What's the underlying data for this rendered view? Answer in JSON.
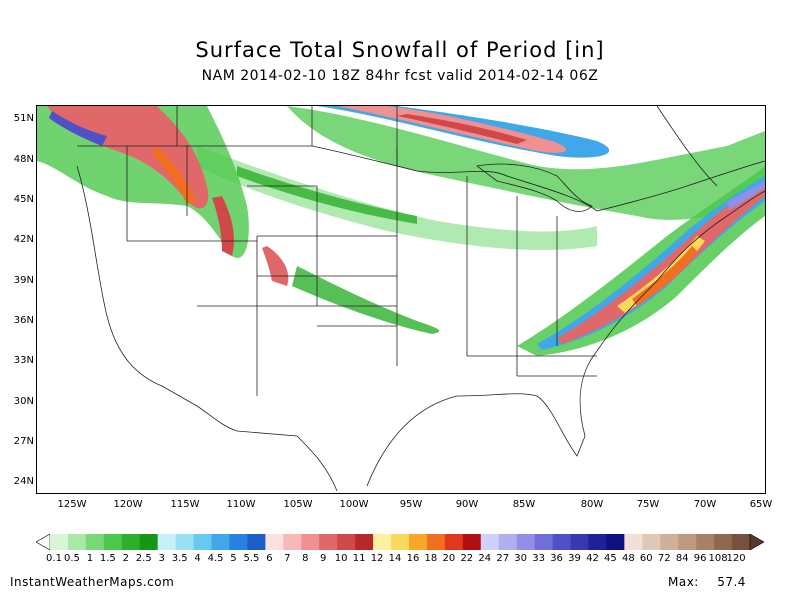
{
  "title": "Surface Total Snowfall of Period [in]",
  "subtitle": "NAM 2014-02-10 18Z 84hr fcst valid 2014-02-14 06Z",
  "lat_labels": [
    "51N",
    "48N",
    "45N",
    "42N",
    "39N",
    "36N",
    "33N",
    "30N",
    "27N",
    "24N"
  ],
  "lon_labels": [
    "125W",
    "120W",
    "115W",
    "110W",
    "105W",
    "100W",
    "95W",
    "90W",
    "85W",
    "80W",
    "75W",
    "70W",
    "65W"
  ],
  "legend": {
    "labels": [
      "0.1",
      "0.5",
      "1",
      "1.5",
      "2",
      "2.5",
      "3",
      "3.5",
      "4",
      "4.5",
      "5",
      "5.5",
      "6",
      "7",
      "8",
      "9",
      "10",
      "11",
      "12",
      "14",
      "16",
      "18",
      "20",
      "22",
      "24",
      "27",
      "30",
      "33",
      "36",
      "39",
      "42",
      "45",
      "48",
      "60",
      "72",
      "84",
      "96",
      "108",
      "120"
    ],
    "colors": [
      "#d8f5d8",
      "#a8e8a8",
      "#78d878",
      "#4cc84c",
      "#2cb02c",
      "#169616",
      "#c8f0f8",
      "#98e0f4",
      "#68c8ee",
      "#40a8e8",
      "#2880e0",
      "#1860c8",
      "#ffe0e0",
      "#f8b8b8",
      "#f09090",
      "#e06868",
      "#d04848",
      "#b82828",
      "#fff0a0",
      "#fcd858",
      "#f8a828",
      "#f07020",
      "#e03818",
      "#b01010",
      "#d0d0f8",
      "#b0b0f0",
      "#9090e8",
      "#7070d8",
      "#5050c8",
      "#3838b0",
      "#202098",
      "#101080",
      "#f0e0d8",
      "#e0c8b8",
      "#d0b098",
      "#c09880",
      "#a88068",
      "#906850",
      "#785040"
    ]
  },
  "footer": {
    "source": "InstantWeatherMaps.com",
    "max_label": "Max:",
    "max_value": "57.4"
  }
}
